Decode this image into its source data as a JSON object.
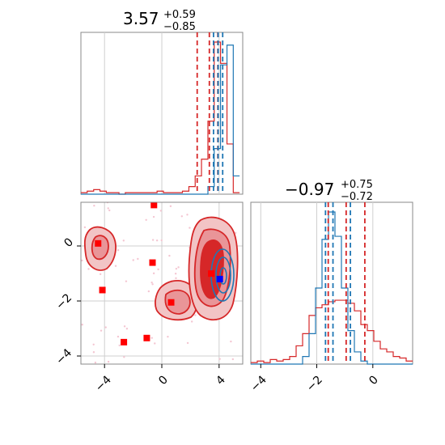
{
  "chart_data": {
    "type": "corner",
    "colors": {
      "primary": "#d62728",
      "secondary": "#1f77b4",
      "points": "#ff0000",
      "truth": "#0000ff"
    },
    "grid": true,
    "panels": [
      {
        "id": "hist_param1",
        "type": "histogram",
        "title": {
          "median": "3.57",
          "plus": "+0.59",
          "minus": "−0.85"
        },
        "xlim": [
          -5.4,
          5.9
        ],
        "bins": [
          -5.4,
          -4.96,
          -4.51,
          -4.07,
          -3.63,
          -3.18,
          -2.74,
          -2.3,
          -1.85,
          -1.41,
          -0.97,
          -0.52,
          -0.08,
          0.36,
          0.81,
          1.25,
          1.69,
          2.14,
          2.58,
          3.02,
          3.47,
          3.91,
          4.35,
          4.8,
          5.24,
          5.68
        ],
        "series": [
          {
            "color": "#d62728",
            "counts": [
              0.01,
              0.02,
              0.03,
              0.02,
              0.01,
              0.01,
              0.0,
              0.01,
              0.01,
              0.01,
              0.01,
              0.01,
              0.02,
              0.01,
              0.01,
              0.01,
              0.02,
              0.05,
              0.12,
              0.23,
              0.48,
              1.0,
              0.86,
              0.33,
              0.01
            ]
          },
          {
            "color": "#1f77b4",
            "counts": [
              0,
              0,
              0,
              0,
              0,
              0,
              0,
              0,
              0,
              0,
              0,
              0,
              0,
              0,
              0,
              0,
              0,
              0,
              0,
              0,
              0.05,
              0.3,
              0.85,
              0.98,
              0.12
            ]
          }
        ],
        "quantiles": [
          {
            "color": "#d62728",
            "values": [
              2.72,
              3.57,
              4.16
            ]
          },
          {
            "color": "#1f77b4",
            "values": [
              3.86,
              4.18,
              4.5
            ]
          }
        ]
      },
      {
        "id": "hist_param2",
        "type": "histogram",
        "title": {
          "median": "−0.97",
          "plus": "+0.75",
          "minus": "−0.72"
        },
        "xlim": [
          -4.8,
          1.7
        ],
        "xticks": [
          "−4",
          "−2",
          "0"
        ],
        "xtick_values": [
          -4,
          -2,
          0
        ],
        "bins": [
          -4.8,
          -4.54,
          -4.28,
          -4.02,
          -3.76,
          -3.5,
          -3.24,
          -2.98,
          -2.72,
          -2.46,
          -2.2,
          -1.94,
          -1.68,
          -1.42,
          -1.16,
          -0.9,
          -0.64,
          -0.38,
          -0.12,
          0.14,
          0.4,
          0.66,
          0.92,
          1.18,
          1.44,
          1.7
        ],
        "series": [
          {
            "color": "#d62728",
            "counts": [
              0.01,
              0.02,
              0.01,
              0.03,
              0.02,
              0.03,
              0.05,
              0.12,
              0.2,
              0.32,
              0.37,
              0.39,
              0.41,
              0.42,
              0.42,
              0.4,
              0.35,
              0.26,
              0.22,
              0.15,
              0.1,
              0.08,
              0.05,
              0.04,
              0.02
            ]
          },
          {
            "color": "#1f77b4",
            "counts": [
              0,
              0,
              0,
              0,
              0,
              0,
              0,
              0,
              0.05,
              0.2,
              0.5,
              0.82,
              1.0,
              0.84,
              0.5,
              0.22,
              0.08,
              0.02,
              0,
              0,
              0,
              0,
              0,
              0,
              0
            ]
          }
        ],
        "quantiles": [
          {
            "color": "#d62728",
            "values": [
              -1.69,
              -0.97,
              -0.22
            ]
          },
          {
            "color": "#1f77b4",
            "values": [
              -1.8,
              -1.5,
              -0.8
            ]
          }
        ]
      },
      {
        "id": "scatter_2d",
        "type": "contour",
        "xlim": [
          -5.4,
          5.9
        ],
        "ylim": [
          -4.3,
          1.6
        ],
        "xticks": [
          "−4",
          "0",
          "4"
        ],
        "xtick_values": [
          -4,
          0,
          4
        ],
        "yticks": [
          "0",
          "−2",
          "−4"
        ],
        "ytick_values": [
          0,
          -2,
          -4
        ],
        "outlier_points": [
          {
            "x": -4.2,
            "y": 0.1
          },
          {
            "x": -3.9,
            "y": -1.6
          },
          {
            "x": -0.3,
            "y": 1.5
          },
          {
            "x": -0.4,
            "y": -0.6
          },
          {
            "x": 0.9,
            "y": -2.05
          },
          {
            "x": -2.4,
            "y": -3.5
          },
          {
            "x": -0.8,
            "y": -3.35
          },
          {
            "x": 3.7,
            "y": -1.0
          }
        ],
        "truth_point": {
          "x": 4.3,
          "y": -1.2
        }
      }
    ]
  }
}
